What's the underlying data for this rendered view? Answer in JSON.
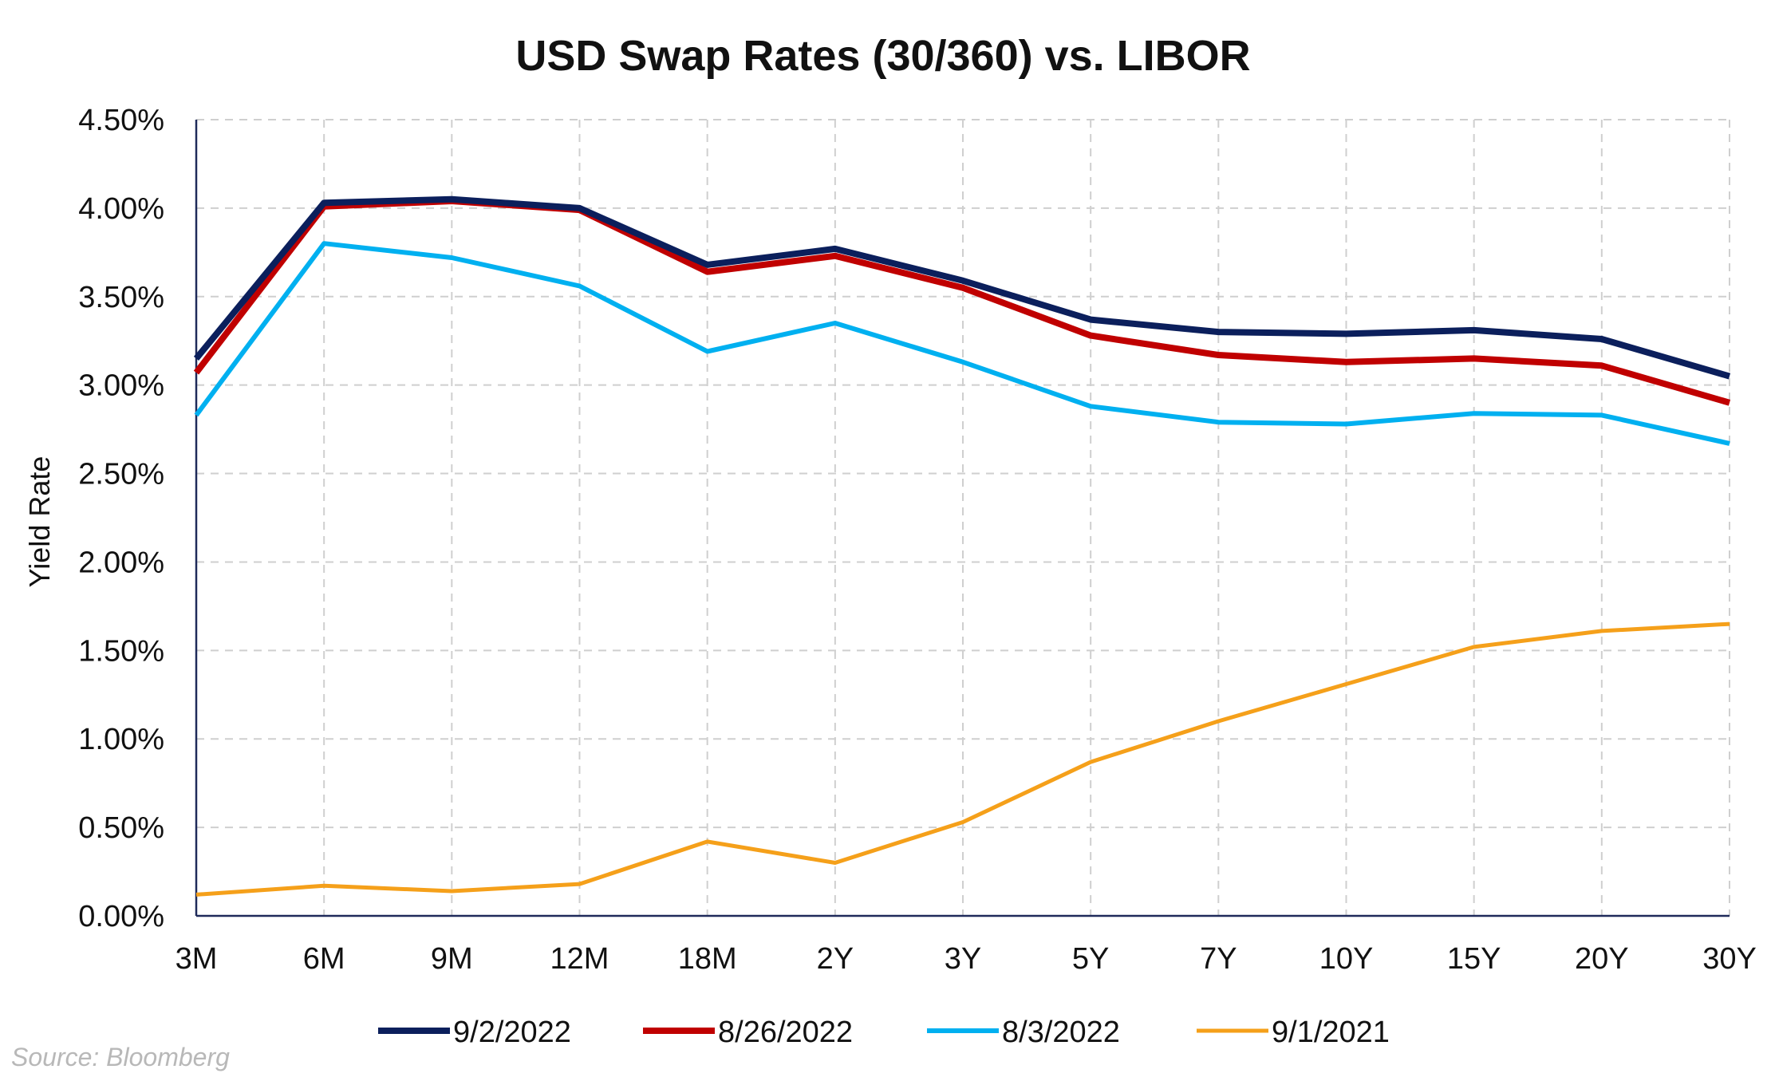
{
  "chart_data": {
    "type": "line",
    "title": "USD Swap Rates (30/360) vs. LIBOR",
    "xlabel": "",
    "ylabel": "Yield Rate",
    "categories": [
      "3M",
      "6M",
      "9M",
      "12M",
      "18M",
      "2Y",
      "3Y",
      "5Y",
      "7Y",
      "10Y",
      "15Y",
      "20Y",
      "30Y"
    ],
    "ylim": [
      0,
      4.5
    ],
    "yticks": [
      0,
      0.5,
      1.0,
      1.5,
      2.0,
      2.5,
      3.0,
      3.5,
      4.0,
      4.5
    ],
    "ytick_labels": [
      "0.00%",
      "0.50%",
      "1.00%",
      "1.50%",
      "2.00%",
      "2.50%",
      "3.00%",
      "3.50%",
      "4.00%",
      "4.50%"
    ],
    "grid": true,
    "legend_position": "bottom",
    "series": [
      {
        "name": "9/2/2022",
        "color": "#0b1f5c",
        "values": [
          3.15,
          4.03,
          4.05,
          4.0,
          3.68,
          3.77,
          3.59,
          3.37,
          3.3,
          3.29,
          3.31,
          3.26,
          3.05
        ]
      },
      {
        "name": "8/26/2022",
        "color": "#c00000",
        "values": [
          3.07,
          4.01,
          4.04,
          3.99,
          3.64,
          3.73,
          3.55,
          3.28,
          3.17,
          3.13,
          3.15,
          3.11,
          2.9
        ]
      },
      {
        "name": "8/3/2022",
        "color": "#00b0f0",
        "values": [
          2.83,
          3.8,
          3.72,
          3.56,
          3.19,
          3.35,
          3.13,
          2.88,
          2.79,
          2.78,
          2.84,
          2.83,
          2.67
        ]
      },
      {
        "name": "9/1/2021",
        "color": "#f5a01a",
        "values": [
          0.12,
          0.17,
          0.14,
          0.18,
          0.42,
          0.3,
          0.53,
          0.87,
          1.1,
          1.31,
          1.52,
          1.61,
          1.65
        ]
      }
    ],
    "source_note": "Source: Bloomberg"
  }
}
